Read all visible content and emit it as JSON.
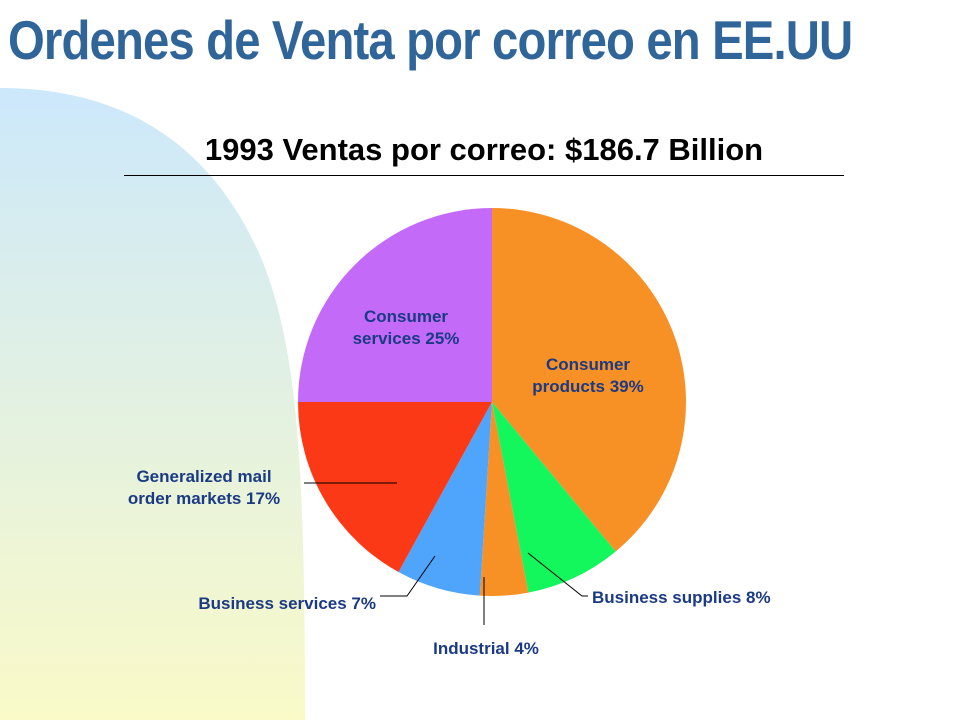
{
  "slide": {
    "title": "Ordenes de Venta por correo en EE.UU"
  },
  "colors": {
    "title": "#2f6598",
    "background_gradient": [
      "#cce8fb",
      "#fafac8"
    ]
  },
  "chart_data": {
    "type": "pie",
    "title": "1993 Ventas por correo: $186.7 Billion",
    "slices": [
      {
        "label": "Consumer products 39%",
        "lines": [
          "Consumer",
          "products 39%"
        ],
        "value": 39,
        "color": "#f79125"
      },
      {
        "label": "Business supplies 8%",
        "lines": [
          "Business supplies 8%"
        ],
        "value": 8,
        "color": "#13f75d"
      },
      {
        "label": "Industrial 4%",
        "lines": [
          "Industrial 4%"
        ],
        "value": 4,
        "color": "#f79125"
      },
      {
        "label": "Business services 7%",
        "lines": [
          "Business services 7%"
        ],
        "value": 7,
        "color": "#4fa5fb"
      },
      {
        "label": "Generalized mail order markets 17%",
        "lines": [
          "Generalized mail",
          "order markets 17%"
        ],
        "value": 17,
        "color": "#fc3917"
      },
      {
        "label": "Consumer services 25%",
        "lines": [
          "Consumer",
          "services 25%"
        ],
        "value": 25,
        "color": "#c36af9"
      }
    ]
  }
}
